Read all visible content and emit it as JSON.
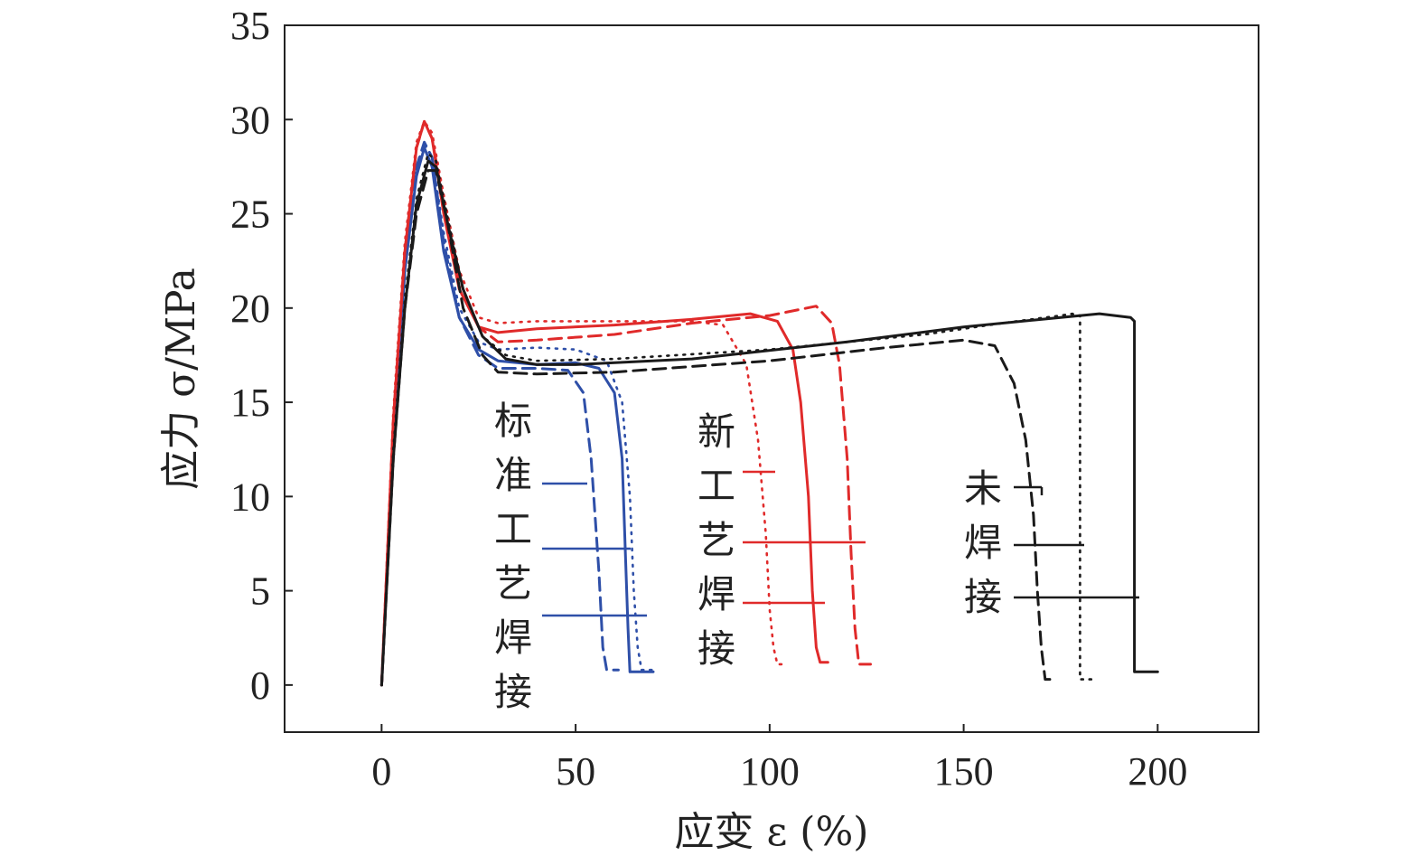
{
  "chart_data": {
    "type": "line",
    "xlabel": "应变 ε (%)",
    "ylabel": "应力 σ/MPa",
    "xlim": [
      -25,
      226
    ],
    "ylim": [
      -2.5,
      35
    ],
    "xticks": [
      0,
      50,
      100,
      150,
      200
    ],
    "yticks": [
      0,
      5,
      10,
      15,
      20,
      25,
      30,
      35
    ],
    "grid": false,
    "groups": [
      {
        "label": "标准工艺焊接",
        "color": "#2e4fa8"
      },
      {
        "label": "新工艺焊接",
        "color": "#e02a2a"
      },
      {
        "label": "未焊接",
        "color": "#1a1a1a"
      }
    ],
    "series": [
      {
        "group": 0,
        "style": "solid",
        "color": "#2e4fa8",
        "x": [
          0,
          3,
          6,
          9,
          11,
          13,
          16,
          20,
          25,
          30,
          40,
          50,
          56,
          60,
          62,
          63,
          63.5,
          64,
          65,
          70
        ],
        "y": [
          0,
          13,
          22,
          27,
          28.5,
          27.5,
          23,
          19.5,
          17.8,
          17.2,
          17.0,
          17.1,
          16.8,
          15.5,
          12,
          6,
          3,
          0.7,
          0.7,
          0.7
        ]
      },
      {
        "group": 0,
        "style": "dashed",
        "color": "#2e4fa8",
        "x": [
          0,
          3,
          6,
          9,
          11,
          13,
          16,
          20,
          25,
          30,
          40,
          48,
          52,
          54,
          56,
          57,
          58,
          61
        ],
        "y": [
          0,
          13,
          22,
          27.5,
          28.8,
          28,
          23.5,
          19.5,
          17.5,
          16.8,
          16.8,
          16.7,
          15.5,
          12,
          6,
          2,
          0.8,
          0.8
        ]
      },
      {
        "group": 0,
        "style": "dotted",
        "color": "#2e4fa8",
        "x": [
          0,
          3,
          6,
          9,
          11,
          13,
          16,
          20,
          25,
          30,
          40,
          50,
          58,
          62,
          64,
          65,
          66,
          67,
          70
        ],
        "y": [
          0,
          13.5,
          22.5,
          27.5,
          28.7,
          28,
          24,
          20,
          18.2,
          17.8,
          17.9,
          17.8,
          17.2,
          15,
          10,
          5,
          2,
          0.8,
          0.8
        ]
      },
      {
        "group": 1,
        "style": "solid",
        "color": "#e02a2a",
        "x": [
          0,
          3,
          6,
          9,
          11,
          13,
          16,
          20,
          25,
          30,
          40,
          60,
          80,
          95,
          102,
          106,
          108,
          110,
          111,
          112,
          113,
          115
        ],
        "y": [
          0,
          14,
          23,
          28.5,
          29.9,
          29,
          25,
          21,
          19,
          18.7,
          18.9,
          19.1,
          19.4,
          19.7,
          19.3,
          17.8,
          15,
          10,
          5,
          2,
          1.2,
          1.2
        ]
      },
      {
        "group": 1,
        "style": "dashed",
        "color": "#e02a2a",
        "x": [
          0,
          3,
          6,
          9,
          11,
          13,
          16,
          20,
          25,
          30,
          40,
          60,
          80,
          100,
          112,
          116,
          118,
          120,
          121,
          122,
          123,
          126
        ],
        "y": [
          0,
          14,
          23,
          28.5,
          29.9,
          29,
          25.5,
          21.5,
          19,
          18.2,
          18.3,
          18.6,
          19.2,
          19.6,
          20.1,
          19.2,
          17,
          12,
          7,
          3,
          1.1,
          1.1
        ]
      },
      {
        "group": 1,
        "style": "dotted",
        "color": "#e02a2a",
        "x": [
          0,
          3,
          6,
          9,
          11,
          13,
          16,
          20,
          25,
          30,
          40,
          60,
          80,
          88,
          94,
          97,
          99,
          100,
          101,
          102,
          104
        ],
        "y": [
          0,
          14.5,
          23.5,
          28.8,
          29.9,
          29.3,
          26,
          22,
          19.5,
          19.2,
          19.3,
          19.3,
          19.3,
          19.1,
          17,
          13,
          8,
          4,
          2,
          1.1,
          1.1
        ]
      },
      {
        "group": 2,
        "style": "solid",
        "color": "#1a1a1a",
        "x": [
          0,
          3,
          6,
          9,
          12,
          14,
          17,
          21,
          26,
          32,
          40,
          50,
          80,
          120,
          150,
          175,
          185,
          193,
          194,
          194,
          195,
          200
        ],
        "y": [
          0,
          12,
          20,
          25.5,
          27.8,
          27.5,
          24.5,
          21,
          18.5,
          17.3,
          17.0,
          17.0,
          17.3,
          18.2,
          19.0,
          19.5,
          19.7,
          19.5,
          19.3,
          0.7,
          0.7,
          0.7
        ]
      },
      {
        "group": 2,
        "style": "dashed",
        "color": "#1a1a1a",
        "x": [
          0,
          3,
          6,
          9,
          12,
          14,
          17,
          21,
          26,
          30,
          40,
          60,
          100,
          130,
          150,
          158,
          163,
          166,
          168,
          169,
          170,
          171,
          174
        ],
        "y": [
          0,
          12,
          20,
          25,
          27.3,
          27.3,
          24.5,
          20,
          17.5,
          16.6,
          16.5,
          16.6,
          17.2,
          17.9,
          18.3,
          18.0,
          16,
          13,
          9,
          5,
          2,
          0.3,
          0.3
        ]
      },
      {
        "group": 2,
        "style": "dotted",
        "color": "#1a1a1a",
        "x": [
          0,
          3,
          6,
          9,
          12,
          14,
          17,
          21,
          26,
          32,
          40,
          60,
          100,
          140,
          160,
          175,
          178,
          179,
          180,
          180,
          181,
          184
        ],
        "y": [
          0,
          12.5,
          20.5,
          25.8,
          28.2,
          27.8,
          24.8,
          21,
          18.5,
          17.5,
          17.2,
          17.3,
          17.8,
          18.6,
          19.2,
          19.6,
          19.7,
          19.6,
          19.6,
          0.3,
          0.3,
          0.3
        ]
      }
    ]
  }
}
